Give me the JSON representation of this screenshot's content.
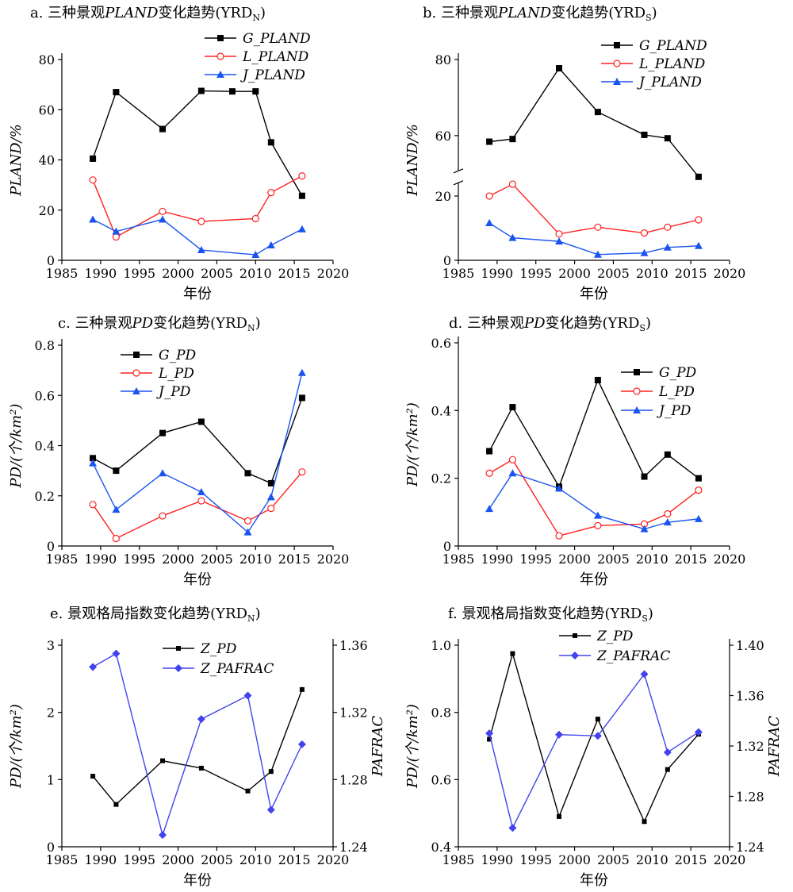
{
  "chart_data": [
    {
      "id": "a",
      "type": "line",
      "title_prefix": "a. 三种景观",
      "title_italic": "PLAND",
      "title_suffix": "变化趋势(YRD",
      "title_sub": "N",
      "title_end": ")",
      "xlabel": "年份",
      "ylabel": "PLAND/%",
      "xlim": [
        1985,
        2020
      ],
      "ylim": [
        0,
        80
      ],
      "xticks": [
        "1985",
        "1990",
        "1995",
        "2000",
        "2005",
        "2010",
        "2015",
        "2020"
      ],
      "yticks": [
        "0",
        "20",
        "40",
        "60",
        "80"
      ],
      "legend": "top-right",
      "x": [
        1989,
        1992,
        1998,
        2003,
        2007,
        2010,
        2012,
        2016
      ],
      "series": [
        {
          "name": "G_PLAND",
          "color": "#000000",
          "marker": "square",
          "values": [
            40.5,
            67,
            52.3,
            67.5,
            67.3,
            67.3,
            47,
            25.7
          ]
        },
        {
          "name": "L_PLAND",
          "color": "#ff2020",
          "marker": "circle",
          "values": [
            32,
            9.3,
            19.5,
            15.5,
            null,
            16.6,
            27,
            33.6
          ]
        },
        {
          "name": "J_PLAND",
          "color": "#1a54f0",
          "marker": "triangle",
          "values": [
            16.3,
            11.5,
            16.3,
            4.1,
            null,
            2.2,
            6,
            12.4
          ]
        }
      ]
    },
    {
      "id": "b",
      "type": "line",
      "title_prefix": "b. 三种景观",
      "title_italic": "PLAND",
      "title_suffix": "变化趋势(YRD",
      "title_sub": "S",
      "title_end": ")",
      "xlabel": "年份",
      "ylabel": "PLAND/%",
      "xlim": [
        1985,
        2020
      ],
      "ylim": [
        0,
        80
      ],
      "axis_break": [
        25,
        50
      ],
      "xticks": [
        "1985",
        "1990",
        "1995",
        "2000",
        "2005",
        "2010",
        "2015",
        "2020"
      ],
      "yticks": [
        "0",
        "20",
        "60",
        "80"
      ],
      "legend": "top-right",
      "x": [
        1989,
        1992,
        1998,
        2003,
        2009,
        2012,
        2016
      ],
      "series": [
        {
          "name": "G_PLAND",
          "color": "#000000",
          "marker": "square",
          "values": [
            58.4,
            59.1,
            77.7,
            66.2,
            60.2,
            59.3,
            49.5
          ]
        },
        {
          "name": "L_PLAND",
          "color": "#ff2020",
          "marker": "circle",
          "values": [
            20,
            23.7,
            8.2,
            10.3,
            8.5,
            10.3,
            12.6
          ]
        },
        {
          "name": "J_PLAND",
          "color": "#1a54f0",
          "marker": "triangle",
          "values": [
            11.6,
            7,
            5.9,
            1.8,
            2.3,
            4,
            4.5
          ]
        }
      ]
    },
    {
      "id": "c",
      "type": "line",
      "title_prefix": "c. 三种景观",
      "title_italic": "PD",
      "title_suffix": "变化趋势(YRD",
      "title_sub": "N",
      "title_end": ")",
      "xlabel": "年份",
      "ylabel": "PD/(个/km²)",
      "xlim": [
        1985,
        2020
      ],
      "ylim": [
        0,
        0.8
      ],
      "xticks": [
        "1985",
        "1990",
        "1995",
        "2000",
        "2005",
        "2010",
        "2015",
        "2020"
      ],
      "yticks": [
        "0",
        "0.2",
        "0.4",
        "0.6",
        "0.8"
      ],
      "legend": "top-left",
      "x": [
        1989,
        1992,
        1998,
        2003,
        2009,
        2012,
        2016
      ],
      "series": [
        {
          "name": "G_PD",
          "color": "#000000",
          "marker": "square",
          "values": [
            0.35,
            0.3,
            0.45,
            0.495,
            0.29,
            0.25,
            0.59
          ]
        },
        {
          "name": "L_PD",
          "color": "#ff2020",
          "marker": "circle",
          "values": [
            0.165,
            0.03,
            0.12,
            0.18,
            0.1,
            0.15,
            0.295
          ]
        },
        {
          "name": "J_PD",
          "color": "#1a54f0",
          "marker": "triangle",
          "values": [
            0.33,
            0.145,
            0.29,
            0.215,
            0.055,
            0.195,
            0.69
          ]
        }
      ]
    },
    {
      "id": "d",
      "type": "line",
      "title_prefix": "d. 三种景观",
      "title_italic": "PD",
      "title_suffix": "变化趋势(YRD",
      "title_sub": "S",
      "title_end": ")",
      "xlabel": "年份",
      "ylabel": "PD/(个/km²)",
      "xlim": [
        1985,
        2020
      ],
      "ylim": [
        0,
        0.6
      ],
      "xticks": [
        "1985",
        "1990",
        "1995",
        "2000",
        "2005",
        "2010",
        "2015",
        "2020"
      ],
      "yticks": [
        "0",
        "0.2",
        "0.4",
        "0.6"
      ],
      "legend": "top-right",
      "x": [
        1989,
        1992,
        1998,
        2003,
        2009,
        2012,
        2016
      ],
      "series": [
        {
          "name": "G_PD",
          "color": "#000000",
          "marker": "square",
          "values": [
            0.28,
            0.41,
            0.175,
            0.49,
            0.205,
            0.27,
            0.2
          ]
        },
        {
          "name": "L_PD",
          "color": "#ff2020",
          "marker": "circle",
          "values": [
            0.215,
            0.255,
            0.03,
            0.06,
            0.065,
            0.095,
            0.165
          ]
        },
        {
          "name": "J_PD",
          "color": "#1a54f0",
          "marker": "triangle",
          "values": [
            0.11,
            0.215,
            0.17,
            0.09,
            0.05,
            0.07,
            0.08
          ]
        }
      ]
    },
    {
      "id": "e",
      "type": "line",
      "title_prefix": "e. 景观格局指数变化趋势(YRD",
      "title_italic": "",
      "title_suffix": "",
      "title_sub": "N",
      "title_end": ")",
      "xlabel": "年份",
      "ylabel": "PD/(个/km²)",
      "ylabel_right": "PAFRAC",
      "xlim": [
        1985,
        2020
      ],
      "ylim": [
        0,
        3
      ],
      "ylim_right": [
        1.24,
        1.36
      ],
      "xticks": [
        "1985",
        "1990",
        "1995",
        "2000",
        "2005",
        "2010",
        "2015",
        "2020"
      ],
      "yticks": [
        "0",
        "1",
        "2",
        "3"
      ],
      "yticks_right": [
        "1.24",
        "1.28",
        "1.32",
        "1.36"
      ],
      "legend": "top-center",
      "x": [
        1989,
        1992,
        1998,
        2003,
        2009,
        2012,
        2016
      ],
      "series": [
        {
          "name": "Z_PD",
          "color": "#000000",
          "marker": "smallsquare",
          "axis": "left",
          "values": [
            1.05,
            0.63,
            1.28,
            1.17,
            0.83,
            1.12,
            2.34
          ]
        },
        {
          "name": "Z_PAFRAC",
          "color": "#4343ee",
          "marker": "diamond",
          "axis": "right",
          "values": [
            1.347,
            1.355,
            1.247,
            1.316,
            1.33,
            1.262,
            1.301
          ]
        }
      ]
    },
    {
      "id": "f",
      "type": "line",
      "title_prefix": "f. 景观格局指数变化趋势(YRD",
      "title_italic": "",
      "title_suffix": "",
      "title_sub": "S",
      "title_end": ")",
      "xlabel": "年份",
      "ylabel": "PD/(个/km²)",
      "ylabel_right": "PAFRAC",
      "xlim": [
        1985,
        2020
      ],
      "ylim": [
        0.4,
        1.0
      ],
      "ylim_right": [
        1.24,
        1.4
      ],
      "xticks": [
        "1985",
        "1990",
        "1995",
        "2000",
        "2005",
        "2010",
        "2015",
        "2020"
      ],
      "yticks": [
        "0.4",
        "0.6",
        "0.8",
        "1.0"
      ],
      "yticks_right": [
        "1.24",
        "1.28",
        "1.32",
        "1.36",
        "1.40"
      ],
      "legend": "top-center",
      "x": [
        1989,
        1992,
        1998,
        2003,
        2009,
        2012,
        2016
      ],
      "series": [
        {
          "name": "Z_PD",
          "color": "#000000",
          "marker": "smallsquare",
          "axis": "left",
          "values": [
            0.72,
            0.975,
            0.49,
            0.78,
            0.475,
            0.63,
            0.735
          ]
        },
        {
          "name": "Z_PAFRAC",
          "color": "#4343ee",
          "marker": "diamond",
          "axis": "right",
          "values": [
            1.33,
            1.255,
            1.329,
            1.328,
            1.377,
            1.315,
            1.331
          ]
        }
      ]
    }
  ]
}
